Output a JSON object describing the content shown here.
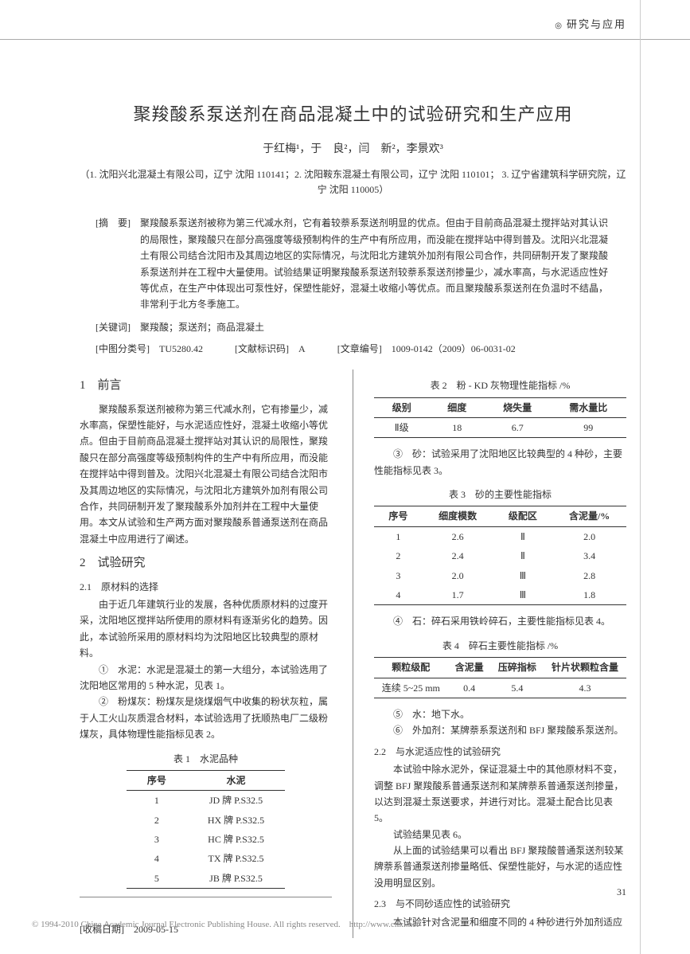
{
  "header": {
    "section": "研究与应用"
  },
  "title": "聚羧酸系泵送剂在商品混凝土中的试验研究和生产应用",
  "authors": "于红梅¹，于　良²，闫　新²，李景欢³",
  "affiliations": "（1. 沈阳兴北混凝土有限公司，辽宁 沈阳 110141；2. 沈阳鞍东混凝土有限公司，辽宁 沈阳 110101；\n3. 辽宁省建筑科学研究院，辽宁 沈阳 110005）",
  "abstract_label": "[摘　要]",
  "abstract": "聚羧酸系泵送剂被称为第三代减水剂，它有着较萘系泵送剂明显的优点。但由于目前商品混凝土搅拌站对其认识的局限性，聚羧酸只在部分高强度等级预制构件的生产中有所应用，而没能在搅拌站中得到普及。沈阳兴北混凝土有限公司结合沈阳市及其周边地区的实际情况，与沈阳北方建筑外加剂有限公司合作，共同研制开发了聚羧酸系泵送剂并在工程中大量使用。试验结果证明聚羧酸系泵送剂较萘系泵送剂掺量少，减水率高，与水泥适应性好等优点，在生产中体现出可泵性好，保塑性能好，混凝土收缩小等优点。而且聚羧酸系泵送剂在负温时不结晶，非常利于北方冬季施工。",
  "keywords_label": "[关键词]",
  "keywords": "聚羧酸；泵送剂；商品混凝土",
  "clc_label": "[中图分类号]",
  "clc": "TU5280.42",
  "doccode_label": "[文献标识码]",
  "doccode": "A",
  "artid_label": "[文章编号]",
  "artid": "1009-0142（2009）06-0031-02",
  "left": {
    "s1_title": "1　前言",
    "s1_body": "聚羧酸系泵送剂被称为第三代减水剂，它有掺量少，减水率高，保塑性能好，与水泥适应性好，混凝土收缩小等优点。但由于目前商品混凝土搅拌站对其认识的局限性，聚羧酸只在部分高强度等级预制构件的生产中有所应用，而没能在搅拌站中得到普及。沈阳兴北混凝土有限公司结合沈阳市及其周边地区的实际情况，与沈阳北方建筑外加剂有限公司合作，共同研制开发了聚羧酸系外加剂并在工程中大量使用。本文从试验和生产两方面对聚羧酸系普通泵送剂在商品混凝土中应用进行了阐述。",
    "s2_title": "2　试验研究",
    "s21_title": "2.1　原材料的选择",
    "s21_body": "由于近几年建筑行业的发展，各种优质原材料的过度开采，沈阳地区搅拌站所使用的原材料有逐渐劣化的趋势。因此，本试验所采用的原材料均为沈阳地区比较典型的原材料。",
    "s21_i1": "①　水泥：水泥是混凝土的第一大组分，本试验选用了沈阳地区常用的 5 种水泥，见表 1。",
    "s21_i2": "②　粉煤灰：粉煤灰是烧煤烟气中收集的粉状灰粒，属于人工火山灰质混合材料，本试验选用了抚顺热电厂二级粉煤灰，具体物理性能指标见表 2。",
    "t1_caption": "表 1　水泥品种",
    "t1": {
      "headers": [
        "序号",
        "水泥"
      ],
      "rows": [
        [
          "1",
          "JD 牌 P.S32.5"
        ],
        [
          "2",
          "HX 牌 P.S32.5"
        ],
        [
          "3",
          "HC 牌 P.S32.5"
        ],
        [
          "4",
          "TX 牌 P.S32.5"
        ],
        [
          "5",
          "JB 牌 P.S32.5"
        ]
      ]
    },
    "recv_label": "[收稿日期]",
    "recv": "2009-05-15"
  },
  "right": {
    "t2_caption": "表 2　粉 - KD 灰物理性能指标 /%",
    "t2": {
      "headers": [
        "级别",
        "细度",
        "烧失量",
        "需水量比"
      ],
      "rows": [
        [
          "Ⅱ级",
          "18",
          "6.7",
          "99"
        ]
      ]
    },
    "s21_i3": "③　砂：试验采用了沈阳地区比较典型的 4 种砂，主要性能指标见表 3。",
    "t3_caption": "表 3　砂的主要性能指标",
    "t3": {
      "headers": [
        "序号",
        "细度模数",
        "级配区",
        "含泥量/%"
      ],
      "rows": [
        [
          "1",
          "2.6",
          "Ⅱ",
          "2.0"
        ],
        [
          "2",
          "2.4",
          "Ⅱ",
          "3.4"
        ],
        [
          "3",
          "2.0",
          "Ⅲ",
          "2.8"
        ],
        [
          "4",
          "1.7",
          "Ⅲ",
          "1.8"
        ]
      ]
    },
    "s21_i4": "④　石：碎石采用铁岭碎石，主要性能指标见表 4。",
    "t4_caption": "表 4　碎石主要性能指标 /%",
    "t4": {
      "headers": [
        "颗粒级配",
        "含泥量",
        "压碎指标",
        "针片状颗粒含量"
      ],
      "rows": [
        [
          "连续 5~25 mm",
          "0.4",
          "5.4",
          "4.3"
        ]
      ]
    },
    "s21_i5": "⑤　水：地下水。",
    "s21_i6": "⑥　外加剂：某牌萘系泵送剂和 BFJ 聚羧酸系泵送剂。",
    "s22_title": "2.2　与水泥适应性的试验研究",
    "s22_body1": "本试验中除水泥外，保证混凝土中的其他原材料不变，调整 BFJ 聚羧酸系普通泵送剂和某牌萘系普通泵送剂掺量，以达到混凝土泵送要求，并进行对比。混凝土配合比见表 5。",
    "s22_body2": "试验结果见表 6。",
    "s22_body3": "从上面的试验结果可以看出 BFJ 聚羧酸普通泵送剂较某牌萘系普通泵送剂掺量略低、保塑性能好，与水泥的适应性没用明显区别。",
    "s23_title": "2.3　与不同砂适应性的试验研究",
    "s23_body": "本试验针对含泥量和细度不同的 4 种砂进行外加剂适应"
  },
  "page_number": "31",
  "footer": "© 1994-2010 China Academic Journal Electronic Publishing House. All rights reserved.　http://www.cnki.net"
}
